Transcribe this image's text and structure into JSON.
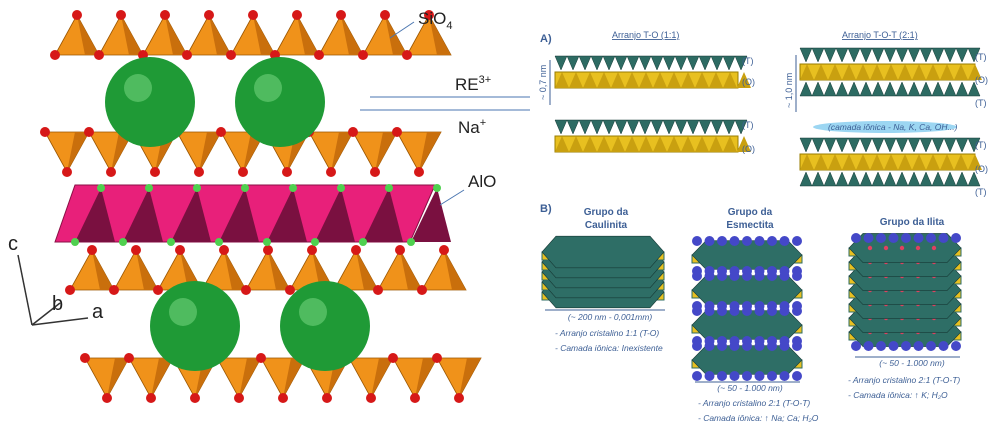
{
  "crystal": {
    "labels": {
      "sio4": "SiO",
      "sio4_sub": "4",
      "re": "RE",
      "re_sup": "3+",
      "na": "Na",
      "na_sup": "+",
      "alo": "AlO"
    },
    "axes": {
      "c": "c",
      "b": "b",
      "a": "a"
    }
  },
  "section_a": {
    "marker": "A)",
    "panels": [
      {
        "title": "Arranjo T-O (1:1)",
        "thickness": "~ 0,7 nm",
        "layer_labels": [
          "(T)",
          "(O)",
          "(T)",
          "(O)"
        ]
      },
      {
        "title": "Arranjo T-O-T (2:1)",
        "thickness": "~ 1,0 nm",
        "layer_labels": [
          "(T)",
          "(O)",
          "(T)",
          "(T)",
          "(O)",
          "(T)"
        ]
      }
    ],
    "ionic_layer": "(camada iônica - Na, K, Ca, OH...)"
  },
  "section_b": {
    "marker": "B)",
    "groups": [
      {
        "title": [
          "Grupo da",
          "Caulinita"
        ],
        "size": "(~ 200 nm - 0,001mm)",
        "notes": [
          "- Arranjo cristalino 1:1 (T-O)",
          "- Camada iônica: Inexistente"
        ]
      },
      {
        "title": [
          "Grupo da",
          "Esmectita"
        ],
        "size": "(~ 50 - 1.000 nm)",
        "notes": [
          "- Arranjo cristalino 2:1 (T-O-T)",
          "- Camada iônica: ↑ Na; Ca; H₂O"
        ]
      },
      {
        "title": [
          "Grupo da Ilita"
        ],
        "size": "(~ 50 - 1.000 nm)",
        "notes": [
          "- Arranjo cristalino 2:1 (T-O-T)",
          "- Camada iônica: ↑ K; H₂O"
        ]
      }
    ]
  }
}
